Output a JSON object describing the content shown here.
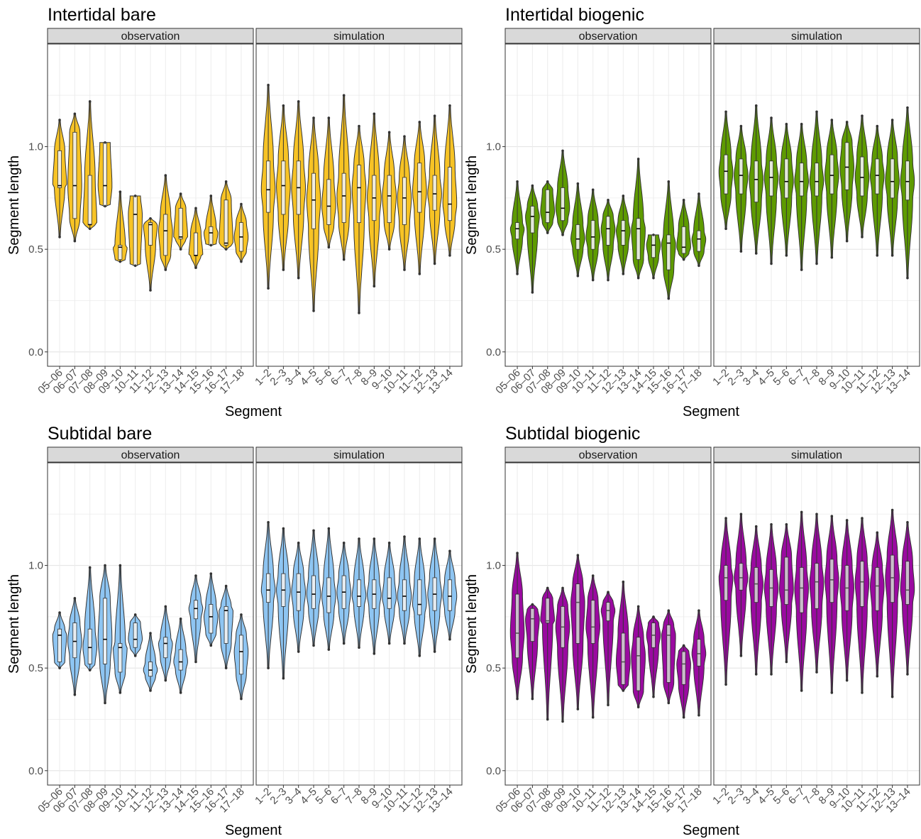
{
  "chart_data": [
    {
      "type": "violin",
      "title": "Intertidal bare",
      "xlabel": "Segment",
      "ylabel": "Segment length",
      "ylim": [
        -0.07,
        1.5
      ],
      "yticks": [
        "0.0",
        "0.5",
        "1.0"
      ],
      "fill": "#F7C325",
      "median_color": "#000000",
      "facets": [
        {
          "name": "observation",
          "categories": [
            "05–06",
            "06–07",
            "07–08",
            "08–09",
            "09–10",
            "10–11",
            "11–12",
            "12–13",
            "13–14",
            "14–15",
            "15–16",
            "16–17",
            "17–18"
          ],
          "min": [
            0.56,
            0.54,
            0.6,
            0.71,
            0.44,
            0.42,
            0.3,
            0.4,
            0.5,
            0.41,
            0.52,
            0.5,
            0.44
          ],
          "q1": [
            0.8,
            0.65,
            0.62,
            0.71,
            0.45,
            0.42,
            0.52,
            0.47,
            0.55,
            0.47,
            0.52,
            0.52,
            0.49
          ],
          "median": [
            0.81,
            0.81,
            0.62,
            0.81,
            0.51,
            0.67,
            0.62,
            0.59,
            0.56,
            0.47,
            0.58,
            0.53,
            0.56
          ],
          "q3": [
            0.98,
            1.07,
            0.86,
            1.02,
            0.52,
            0.76,
            0.63,
            0.67,
            0.7,
            0.58,
            0.61,
            0.74,
            0.63
          ],
          "max": [
            1.13,
            1.16,
            1.22,
            1.02,
            0.78,
            0.76,
            0.65,
            0.86,
            0.77,
            0.7,
            0.76,
            0.83,
            0.72
          ]
        },
        {
          "name": "simulation",
          "categories": [
            "1–2",
            "2–3",
            "3–4",
            "4–5",
            "5–6",
            "6–7",
            "7–8",
            "8–9",
            "9–10",
            "10–11",
            "11–12",
            "12–13",
            "13–14"
          ],
          "min": [
            0.31,
            0.4,
            0.36,
            0.2,
            0.51,
            0.45,
            0.19,
            0.32,
            0.5,
            0.4,
            0.38,
            0.43,
            0.47
          ],
          "q1": [
            0.68,
            0.67,
            0.67,
            0.6,
            0.62,
            0.63,
            0.63,
            0.64,
            0.63,
            0.62,
            0.68,
            0.69,
            0.64
          ],
          "median": [
            0.79,
            0.81,
            0.8,
            0.74,
            0.71,
            0.76,
            0.8,
            0.75,
            0.76,
            0.75,
            0.78,
            0.77,
            0.72
          ],
          "q3": [
            0.93,
            0.93,
            0.93,
            0.87,
            0.84,
            0.87,
            0.91,
            0.86,
            0.86,
            0.85,
            0.92,
            0.86,
            0.9
          ],
          "max": [
            1.3,
            1.2,
            1.22,
            1.14,
            1.14,
            1.25,
            1.1,
            1.16,
            1.07,
            1.05,
            1.12,
            1.15,
            1.2
          ]
        }
      ]
    },
    {
      "type": "violin",
      "title": "Intertidal biogenic",
      "xlabel": "Segment",
      "ylabel": "Segment length",
      "ylim": [
        -0.07,
        1.5
      ],
      "yticks": [
        "0.0",
        "0.5",
        "1.0"
      ],
      "fill": "#5E9B00",
      "median_color": "#000000",
      "facets": [
        {
          "name": "observation",
          "categories": [
            "05–06",
            "06–07",
            "07–08",
            "08–09",
            "09–10",
            "10–11",
            "11–12",
            "12–13",
            "13–14",
            "14–15",
            "15–16",
            "16–17",
            "17–18"
          ],
          "min": [
            0.38,
            0.29,
            0.58,
            0.57,
            0.37,
            0.35,
            0.35,
            0.38,
            0.36,
            0.36,
            0.26,
            0.45,
            0.42
          ],
          "q1": [
            0.55,
            0.58,
            0.63,
            0.64,
            0.5,
            0.5,
            0.52,
            0.52,
            0.45,
            0.46,
            0.4,
            0.48,
            0.49
          ],
          "median": [
            0.6,
            0.66,
            0.68,
            0.7,
            0.55,
            0.56,
            0.6,
            0.59,
            0.6,
            0.52,
            0.53,
            0.51,
            0.55
          ],
          "q3": [
            0.63,
            0.71,
            0.79,
            0.8,
            0.62,
            0.64,
            0.66,
            0.64,
            0.65,
            0.57,
            0.57,
            0.61,
            0.59
          ],
          "max": [
            0.83,
            0.81,
            0.83,
            0.98,
            0.82,
            0.79,
            0.74,
            0.76,
            0.94,
            0.57,
            0.83,
            0.74,
            0.77
          ]
        },
        {
          "name": "simulation",
          "categories": [
            "1–2",
            "2–3",
            "3–4",
            "4–5",
            "5–6",
            "6–7",
            "7–8",
            "8–9",
            "9–10",
            "10–11",
            "11–12",
            "12–13",
            "13–14"
          ],
          "min": [
            0.6,
            0.49,
            0.48,
            0.43,
            0.47,
            0.4,
            0.43,
            0.46,
            0.54,
            0.56,
            0.47,
            0.47,
            0.36
          ],
          "q1": [
            0.77,
            0.77,
            0.73,
            0.76,
            0.75,
            0.76,
            0.76,
            0.77,
            0.79,
            0.76,
            0.77,
            0.75,
            0.74
          ],
          "median": [
            0.88,
            0.86,
            0.84,
            0.85,
            0.83,
            0.83,
            0.83,
            0.86,
            0.9,
            0.85,
            0.86,
            0.83,
            0.83
          ],
          "q3": [
            0.96,
            0.94,
            0.93,
            0.93,
            0.94,
            0.92,
            0.92,
            0.96,
            1.02,
            0.95,
            0.94,
            0.94,
            0.93
          ],
          "max": [
            1.17,
            1.1,
            1.2,
            1.14,
            1.11,
            1.11,
            1.17,
            1.13,
            1.12,
            1.15,
            1.1,
            1.13,
            1.19
          ]
        }
      ]
    },
    {
      "type": "violin",
      "title": "Subtidal bare",
      "xlabel": "Segment",
      "ylabel": "Segment length",
      "ylim": [
        -0.07,
        1.5
      ],
      "yticks": [
        "0.0",
        "0.5",
        "1.0"
      ],
      "fill": "#8EC5F2",
      "median_color": "#000000",
      "facets": [
        {
          "name": "observation",
          "categories": [
            "05–06",
            "06–07",
            "07–08",
            "08–09",
            "09–10",
            "10–11",
            "11–12",
            "12–13",
            "13–14",
            "14–15",
            "15–16",
            "16–17",
            "17–18"
          ],
          "min": [
            0.5,
            0.37,
            0.49,
            0.33,
            0.38,
            0.56,
            0.39,
            0.44,
            0.38,
            0.53,
            0.61,
            0.5,
            0.35
          ],
          "q1": [
            0.53,
            0.55,
            0.52,
            0.52,
            0.48,
            0.6,
            0.46,
            0.55,
            0.49,
            0.74,
            0.67,
            0.62,
            0.47
          ],
          "median": [
            0.66,
            0.63,
            0.6,
            0.64,
            0.6,
            0.64,
            0.49,
            0.62,
            0.53,
            0.79,
            0.75,
            0.78,
            0.58
          ],
          "q3": [
            0.69,
            0.72,
            0.69,
            0.84,
            0.62,
            0.72,
            0.53,
            0.65,
            0.59,
            0.83,
            0.81,
            0.8,
            0.66
          ],
          "max": [
            0.77,
            0.84,
            0.99,
            1.0,
            1.0,
            0.76,
            0.67,
            0.8,
            0.74,
            0.95,
            0.96,
            0.9,
            0.76
          ]
        },
        {
          "name": "simulation",
          "categories": [
            "1–2",
            "2–3",
            "3–4",
            "4–5",
            "5–6",
            "6–7",
            "7–8",
            "8–9",
            "9–10",
            "10–11",
            "11–12",
            "12–13",
            "13–14"
          ],
          "min": [
            0.5,
            0.45,
            0.58,
            0.61,
            0.59,
            0.62,
            0.6,
            0.57,
            0.62,
            0.62,
            0.56,
            0.58,
            0.64
          ],
          "q1": [
            0.82,
            0.8,
            0.78,
            0.79,
            0.77,
            0.79,
            0.8,
            0.79,
            0.79,
            0.78,
            0.76,
            0.78,
            0.78
          ],
          "median": [
            0.88,
            0.88,
            0.87,
            0.86,
            0.85,
            0.87,
            0.85,
            0.86,
            0.84,
            0.85,
            0.81,
            0.86,
            0.85
          ],
          "q3": [
            0.96,
            0.96,
            0.96,
            0.95,
            0.94,
            0.95,
            0.93,
            0.93,
            0.94,
            0.93,
            0.93,
            0.94,
            0.93
          ],
          "max": [
            1.21,
            1.18,
            1.11,
            1.17,
            1.18,
            1.11,
            1.13,
            1.13,
            1.11,
            1.14,
            1.13,
            1.13,
            1.07
          ]
        }
      ]
    },
    {
      "type": "violin",
      "title": "Subtidal biogenic",
      "xlabel": "Segment",
      "ylabel": "Segment length",
      "ylim": [
        -0.07,
        1.5
      ],
      "yticks": [
        "0.0",
        "0.5",
        "1.0"
      ],
      "fill": "#9A0AA0",
      "median_color": "#e8e8e8",
      "facets": [
        {
          "name": "observation",
          "categories": [
            "05–06",
            "06–07",
            "07–08",
            "08–09",
            "09–10",
            "10–11",
            "11–12",
            "12–13",
            "13–14",
            "14–15",
            "15–16",
            "16–17",
            "17–18"
          ],
          "min": [
            0.35,
            0.35,
            0.25,
            0.24,
            0.3,
            0.26,
            0.32,
            0.39,
            0.31,
            0.36,
            0.33,
            0.26,
            0.27
          ],
          "q1": [
            0.55,
            0.63,
            0.72,
            0.6,
            0.62,
            0.62,
            0.73,
            0.42,
            0.39,
            0.6,
            0.43,
            0.42,
            0.51
          ],
          "median": [
            0.67,
            0.74,
            0.73,
            0.7,
            0.82,
            0.7,
            0.78,
            0.53,
            0.56,
            0.66,
            0.66,
            0.52,
            0.57
          ],
          "q3": [
            0.86,
            0.79,
            0.84,
            0.8,
            0.91,
            0.83,
            0.82,
            0.67,
            0.65,
            0.72,
            0.71,
            0.58,
            0.64
          ],
          "max": [
            1.06,
            0.81,
            0.89,
            0.89,
            1.05,
            0.95,
            0.87,
            0.92,
            0.8,
            0.75,
            0.78,
            0.61,
            0.78
          ]
        },
        {
          "name": "simulation",
          "categories": [
            "1–2",
            "2–3",
            "3–4",
            "4–5",
            "5–6",
            "6–7",
            "7–8",
            "8–9",
            "9–10",
            "10–11",
            "11–12",
            "12–13",
            "13–14"
          ],
          "min": [
            0.42,
            0.56,
            0.47,
            0.47,
            0.53,
            0.39,
            0.48,
            0.38,
            0.44,
            0.38,
            0.46,
            0.36,
            0.47
          ],
          "q1": [
            0.83,
            0.88,
            0.82,
            0.8,
            0.81,
            0.77,
            0.79,
            0.82,
            0.78,
            0.8,
            0.78,
            0.82,
            0.81
          ],
          "median": [
            0.94,
            0.94,
            0.91,
            0.89,
            0.88,
            0.89,
            0.92,
            0.93,
            0.89,
            0.92,
            0.9,
            0.94,
            0.88
          ],
          "q3": [
            1.0,
            1.01,
            0.99,
            0.98,
            1.04,
            0.99,
            1.01,
            1.03,
            1.0,
            1.02,
            0.99,
            1.05,
            1.02
          ],
          "max": [
            1.23,
            1.25,
            1.19,
            1.2,
            1.2,
            1.26,
            1.25,
            1.24,
            1.22,
            1.23,
            1.16,
            1.27,
            1.21
          ]
        }
      ]
    }
  ]
}
